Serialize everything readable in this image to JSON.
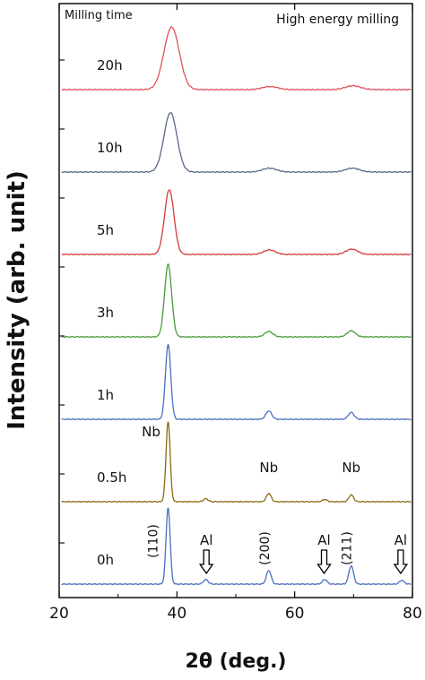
{
  "chart_data": {
    "type": "line",
    "xlabel": "2θ (deg.)",
    "ylabel": "Intensity (arb. unit)",
    "xlim": [
      20,
      80
    ],
    "xticks": [
      20,
      40,
      60,
      80
    ],
    "legend_title": "Milling time",
    "annotation_top_right": "High energy milling",
    "peak_positions": {
      "110": 38.5,
      "200": 55.6,
      "211": 69.6
    },
    "al_positions": [
      45,
      65,
      78
    ],
    "series": [
      {
        "name": "0h",
        "color": "#4a6fbf",
        "offset": 0,
        "peaks": [
          [
            38.5,
            100,
            0.35
          ],
          [
            44.9,
            6,
            0.4
          ],
          [
            55.6,
            18,
            0.4
          ],
          [
            65.1,
            6,
            0.4
          ],
          [
            69.6,
            24,
            0.4
          ],
          [
            78.2,
            5,
            0.4
          ]
        ]
      },
      {
        "name": "0.5h",
        "color": "#8a6a12",
        "offset": 1,
        "peaks": [
          [
            38.5,
            105,
            0.35
          ],
          [
            44.9,
            4,
            0.4
          ],
          [
            55.6,
            11,
            0.4
          ],
          [
            65.1,
            3,
            0.4
          ],
          [
            69.6,
            9,
            0.4
          ]
        ]
      },
      {
        "name": "1h",
        "color": "#4a6fbf",
        "offset": 2,
        "peaks": [
          [
            38.5,
            98,
            0.45
          ],
          [
            55.6,
            11,
            0.5
          ],
          [
            69.6,
            9,
            0.5
          ]
        ]
      },
      {
        "name": "3h",
        "color": "#4a9a3a",
        "offset": 3,
        "peaks": [
          [
            38.5,
            95,
            0.6
          ],
          [
            55.6,
            7,
            0.7
          ],
          [
            69.6,
            8,
            0.7
          ]
        ]
      },
      {
        "name": "5h",
        "color": "#d43a3a",
        "offset": 4,
        "peaks": [
          [
            38.7,
            85,
            0.8
          ],
          [
            55.7,
            6,
            1.0
          ],
          [
            69.7,
            7,
            1.0
          ]
        ]
      },
      {
        "name": "10h",
        "color": "#5a6a88",
        "offset": 5,
        "peaks": [
          [
            38.9,
            78,
            1.1
          ],
          [
            55.7,
            5,
            1.2
          ],
          [
            69.8,
            5,
            1.2
          ]
        ]
      },
      {
        "name": "20h",
        "color": "#e0505a",
        "offset": 6,
        "peaks": [
          [
            39.1,
            82,
            1.3
          ],
          [
            55.8,
            4,
            1.3
          ],
          [
            69.9,
            5,
            1.3
          ]
        ]
      }
    ],
    "annotations": [
      {
        "text": "Nb",
        "x": 38.5,
        "series": "0.5h",
        "kind": "label"
      },
      {
        "text": "Nb",
        "x": 55.6,
        "series": "0.5h",
        "kind": "label"
      },
      {
        "text": "Nb",
        "x": 69.6,
        "series": "0.5h",
        "kind": "label"
      },
      {
        "text": "(110)",
        "x": 38.5,
        "series": "0h",
        "kind": "miller"
      },
      {
        "text": "(200)",
        "x": 55.6,
        "series": "0h",
        "kind": "miller"
      },
      {
        "text": "(211)",
        "x": 69.6,
        "series": "0h",
        "kind": "miller"
      },
      {
        "text": "Al",
        "x": 45,
        "series": "0h",
        "kind": "arrow"
      },
      {
        "text": "Al",
        "x": 65,
        "series": "0h",
        "kind": "arrow"
      },
      {
        "text": "Al",
        "x": 78,
        "series": "0h",
        "kind": "arrow"
      }
    ]
  }
}
